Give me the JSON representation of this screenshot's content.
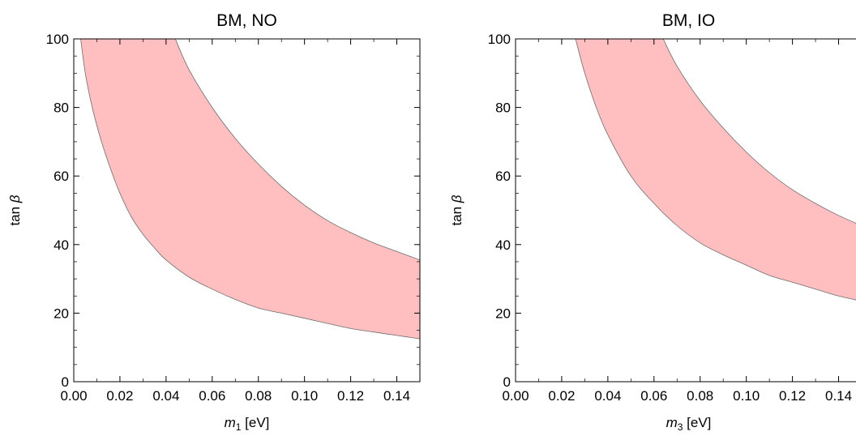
{
  "figure": {
    "bg_color": "#ffffff",
    "band_color": "#ffbfc0",
    "edge_color": "#6d6d6d"
  },
  "chart_data": [
    {
      "type": "area",
      "title": "BM, NO",
      "xlabel": {
        "var": "m",
        "sub": "1",
        "unit": " [eV]"
      },
      "ylabel": {
        "text": "tan ",
        "symbol": "β"
      },
      "xlim": [
        0,
        0.15
      ],
      "ylim": [
        0,
        100
      ],
      "xticks": [
        "0.00",
        "0.02",
        "0.04",
        "0.06",
        "0.08",
        "0.10",
        "0.12",
        "0.14"
      ],
      "yticks": [
        "0",
        "20",
        "40",
        "60",
        "80",
        "100"
      ],
      "grid": false,
      "series": [
        {
          "lower": [
            [
              0.003,
              100
            ],
            [
              0.005,
              90
            ],
            [
              0.008,
              80
            ],
            [
              0.012,
              70
            ],
            [
              0.016,
              62
            ],
            [
              0.02,
              55
            ],
            [
              0.025,
              48
            ],
            [
              0.03,
              43
            ],
            [
              0.035,
              39
            ],
            [
              0.04,
              35.5
            ],
            [
              0.05,
              30.5
            ],
            [
              0.06,
              27
            ],
            [
              0.07,
              24
            ],
            [
              0.08,
              21.5
            ],
            [
              0.09,
              20
            ],
            [
              0.1,
              18.5
            ],
            [
              0.11,
              17
            ],
            [
              0.12,
              15.5
            ],
            [
              0.13,
              14.5
            ],
            [
              0.14,
              13.5
            ],
            [
              0.15,
              12.5
            ]
          ],
          "upper": [
            [
              0.044,
              100
            ],
            [
              0.05,
              91
            ],
            [
              0.06,
              80
            ],
            [
              0.07,
              71
            ],
            [
              0.08,
              63.5
            ],
            [
              0.09,
              57
            ],
            [
              0.1,
              51.5
            ],
            [
              0.11,
              47
            ],
            [
              0.12,
              43.5
            ],
            [
              0.13,
              40.5
            ],
            [
              0.14,
              38
            ],
            [
              0.15,
              35.5
            ]
          ]
        }
      ]
    },
    {
      "type": "area",
      "title": "BM, IO",
      "xlabel": {
        "var": "m",
        "sub": "3",
        "unit": " [eV]"
      },
      "ylabel": {
        "text": "tan ",
        "symbol": "β"
      },
      "xlim": [
        0,
        0.15
      ],
      "ylim": [
        0,
        100
      ],
      "xticks": [
        "0.00",
        "0.02",
        "0.04",
        "0.06",
        "0.08",
        "0.10",
        "0.12",
        "0.14"
      ],
      "yticks": [
        "0",
        "20",
        "40",
        "60",
        "80",
        "100"
      ],
      "grid": false,
      "series": [
        {
          "lower": [
            [
              0.026,
              100
            ],
            [
              0.03,
              90
            ],
            [
              0.035,
              80
            ],
            [
              0.04,
              72
            ],
            [
              0.05,
              60
            ],
            [
              0.06,
              52
            ],
            [
              0.07,
              45.5
            ],
            [
              0.08,
              40.5
            ],
            [
              0.09,
              37
            ],
            [
              0.1,
              34
            ],
            [
              0.11,
              31
            ],
            [
              0.12,
              29
            ],
            [
              0.13,
              27
            ],
            [
              0.14,
              25
            ],
            [
              0.15,
              23.5
            ]
          ],
          "upper": [
            [
              0.064,
              100
            ],
            [
              0.07,
              92
            ],
            [
              0.08,
              82
            ],
            [
              0.09,
              74
            ],
            [
              0.1,
              67
            ],
            [
              0.11,
              61
            ],
            [
              0.12,
              56
            ],
            [
              0.13,
              52
            ],
            [
              0.14,
              48.5
            ],
            [
              0.15,
              45.5
            ]
          ]
        }
      ]
    }
  ]
}
